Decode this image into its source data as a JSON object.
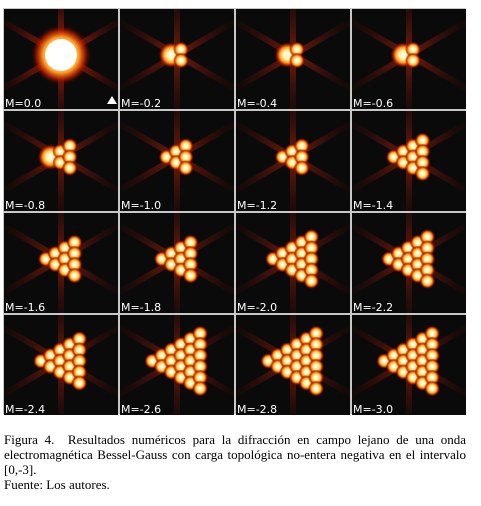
{
  "figure": {
    "panels": [
      {
        "label": "M=0.0"
      },
      {
        "label": "M=-0.2"
      },
      {
        "label": "M=-0.4"
      },
      {
        "label": "M=-0.6"
      },
      {
        "label": "M=-0.8"
      },
      {
        "label": "M=-1.0"
      },
      {
        "label": "M=-1.2"
      },
      {
        "label": "M=-1.4"
      },
      {
        "label": "M=-1.6"
      },
      {
        "label": "M=-1.8"
      },
      {
        "label": "M=-2.0"
      },
      {
        "label": "M=-2.2"
      },
      {
        "label": "M=-2.4"
      },
      {
        "label": "M=-2.6"
      },
      {
        "label": "M=-2.8"
      },
      {
        "label": "M=-3.0"
      }
    ]
  },
  "caption": {
    "text": "Figura 4.  Resultados numéricos para la difracción en campo lejano de una onda electromagnética Bessel-Gauss con carga topológica no-entera negativa en el intervalo [0,-3].",
    "source": "Fuente: Los autores."
  }
}
